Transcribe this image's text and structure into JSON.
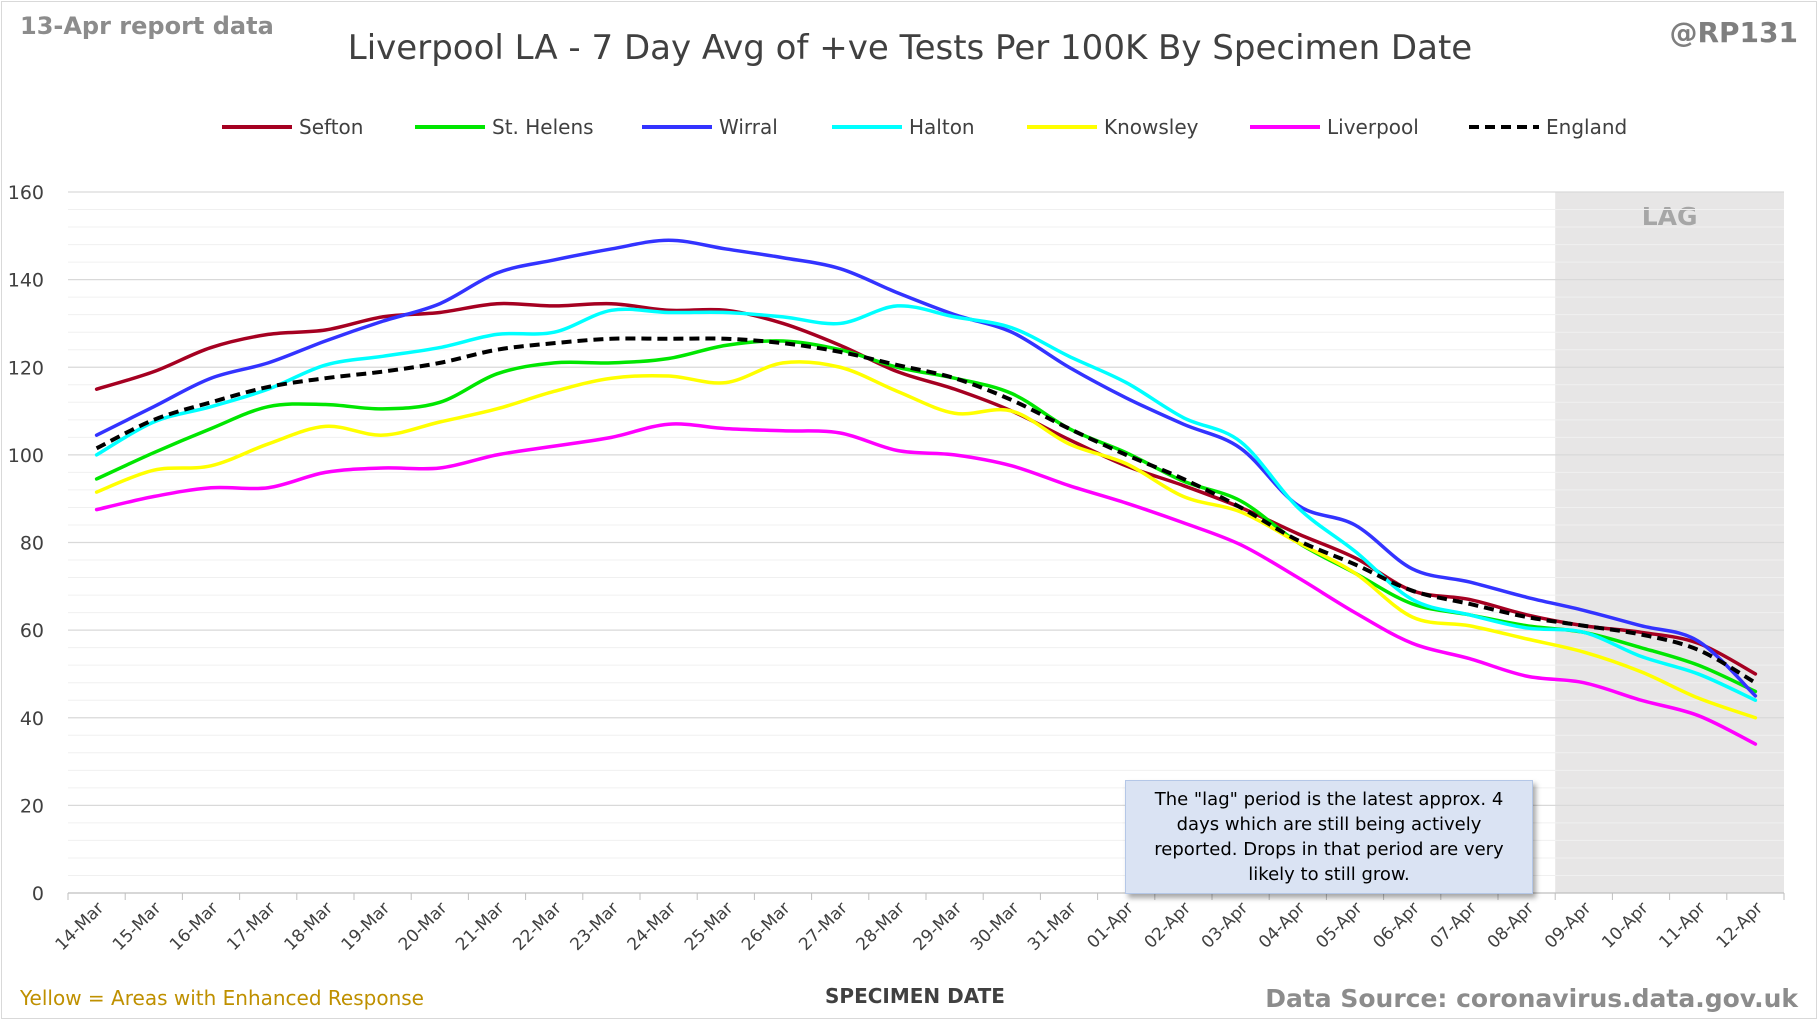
{
  "header": {
    "report_date": "13-Apr report data",
    "handle": "@RP131"
  },
  "footer": {
    "enhanced_note": "Yellow = Areas with Enhanced Response",
    "source": "Data Source: coronavirus.data.gov.uk"
  },
  "annotation": {
    "lag_label": "LAG",
    "note": "The \"lag\" period is the latest approx. 4 days which are still being actively reported. Drops in that period are very likely to still grow."
  },
  "chart_data": {
    "type": "line",
    "title": "Liverpool LA - 7 Day Avg of +ve Tests Per 100K By Specimen Date",
    "xlabel": "SPECIMEN DATE",
    "ylabel": "",
    "ylim": [
      0,
      160
    ],
    "yticks": [
      0,
      20,
      40,
      60,
      80,
      100,
      120,
      140,
      160
    ],
    "grid": true,
    "legend": "top",
    "lag_start": "09-Apr",
    "categories": [
      "14-Mar",
      "15-Mar",
      "16-Mar",
      "17-Mar",
      "18-Mar",
      "19-Mar",
      "20-Mar",
      "21-Mar",
      "22-Mar",
      "23-Mar",
      "24-Mar",
      "25-Mar",
      "26-Mar",
      "27-Mar",
      "28-Mar",
      "29-Mar",
      "30-Mar",
      "31-Mar",
      "01-Apr",
      "02-Apr",
      "03-Apr",
      "04-Apr",
      "05-Apr",
      "06-Apr",
      "07-Apr",
      "08-Apr",
      "09-Apr",
      "10-Apr",
      "11-Apr",
      "12-Apr"
    ],
    "series": [
      {
        "name": "Sefton",
        "color": "#a50021",
        "dash": false,
        "values": [
          115,
          119,
          124.5,
          127.5,
          128.5,
          131.5,
          132.5,
          134.5,
          134,
          134.5,
          133,
          133,
          130,
          125,
          119,
          115,
          110,
          103.5,
          97.5,
          93,
          88,
          82,
          76.5,
          69,
          67,
          63.5,
          61,
          59.5,
          57,
          50
        ]
      },
      {
        "name": "St. Helens",
        "color": "#00e600",
        "dash": false,
        "values": [
          94.5,
          100.5,
          106,
          111,
          111.5,
          110.5,
          112,
          118.5,
          121,
          121,
          122,
          125,
          126,
          124,
          120,
          117.5,
          114,
          106,
          100.5,
          94,
          89.5,
          80,
          73,
          66,
          63.5,
          61,
          59.5,
          56,
          52,
          46
        ]
      },
      {
        "name": "Wirral",
        "color": "#3333ff",
        "dash": false,
        "values": [
          104.5,
          111,
          117.5,
          121,
          126,
          130.5,
          134.5,
          141.5,
          144.5,
          147,
          149,
          147,
          145,
          142.5,
          137,
          132,
          128,
          120,
          113,
          107,
          101.5,
          88.5,
          84,
          74,
          71,
          67.5,
          64.5,
          61,
          57.5,
          45
        ]
      },
      {
        "name": "Halton",
        "color": "#00ffff",
        "dash": false,
        "values": [
          100,
          107.5,
          111,
          115,
          120.5,
          122.5,
          124.5,
          127.5,
          128,
          133,
          132.5,
          132.5,
          131.5,
          130,
          134,
          131.5,
          129,
          122.5,
          116.5,
          108.5,
          103,
          88,
          78,
          67,
          63.5,
          60.5,
          59.5,
          54,
          50,
          44
        ]
      },
      {
        "name": "Knowsley",
        "color": "#ffff00",
        "dash": false,
        "values": [
          91.5,
          96.5,
          97.5,
          102.5,
          106.5,
          104.5,
          107.5,
          110.5,
          114.5,
          117.5,
          118,
          116.5,
          121,
          120,
          114.5,
          109.5,
          110,
          102.5,
          98,
          90.5,
          87,
          80,
          73,
          63,
          61,
          58,
          55,
          50.5,
          44.5,
          40
        ]
      },
      {
        "name": "Liverpool",
        "color": "#ff00ff",
        "dash": false,
        "values": [
          87.5,
          90.5,
          92.5,
          92.5,
          96,
          97,
          97,
          100,
          102,
          104,
          107,
          106,
          105.5,
          105,
          101,
          100,
          97.5,
          93,
          89,
          84.5,
          79.5,
          72,
          64,
          57,
          53.5,
          49.5,
          48,
          44,
          40.5,
          34
        ]
      },
      {
        "name": "England",
        "color": "#000000",
        "dash": true,
        "values": [
          101.5,
          108,
          112,
          115.5,
          117.5,
          119,
          121,
          124,
          125.5,
          126.5,
          126.5,
          126.5,
          125.5,
          123.5,
          120.5,
          117.5,
          112.5,
          106,
          100,
          94.5,
          88,
          80.5,
          75,
          69,
          66,
          63,
          61,
          59,
          55.5,
          48
        ]
      }
    ]
  }
}
